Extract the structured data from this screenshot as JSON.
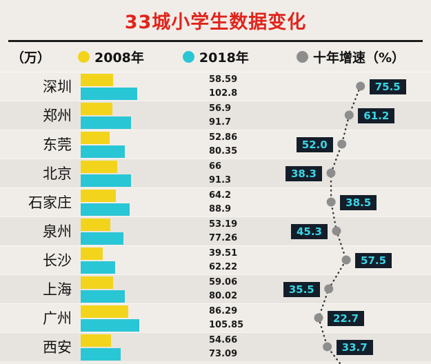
{
  "title": "33城小学生数据变化",
  "legend": {
    "unit": "（万）",
    "series_2008": "2008年",
    "series_2018": "2018年",
    "growth": "十年增速（%）"
  },
  "colors": {
    "title": "#e0241c",
    "bar_2008": "#f3d41c",
    "bar_2018": "#29c6d5",
    "growth_dot": "#8d8d8d",
    "trend_line": "#333333",
    "badge_bg": "#141e2a",
    "badge_text": "#38d6e6"
  },
  "chart_data": {
    "type": "bar",
    "orientation": "horizontal",
    "title": "33城小学生数据变化",
    "unit": "万",
    "legend_position": "top",
    "categories": [
      "深圳",
      "郑州",
      "东莞",
      "北京",
      "石家庄",
      "泉州",
      "长沙",
      "上海",
      "广州",
      "西安"
    ],
    "series": [
      {
        "name": "2008年",
        "values": [
          58.59,
          56.9,
          52.86,
          66,
          64.2,
          53.19,
          39.51,
          59.06,
          86.29,
          54.66
        ]
      },
      {
        "name": "2018年",
        "values": [
          102.8,
          91.7,
          80.35,
          91.3,
          88.9,
          77.26,
          62.22,
          80.02,
          105.85,
          73.09
        ]
      }
    ],
    "growth": {
      "name": "十年增速（%）",
      "values": [
        "75.5",
        "61.2",
        "52.0",
        "38.3",
        "38.5",
        "45.3",
        "57.5",
        "35.5",
        "22.7",
        "33.7"
      ],
      "badge_side": [
        "right",
        "right",
        "left",
        "left",
        "right",
        "left",
        "right",
        "left",
        "right",
        "right"
      ]
    }
  }
}
